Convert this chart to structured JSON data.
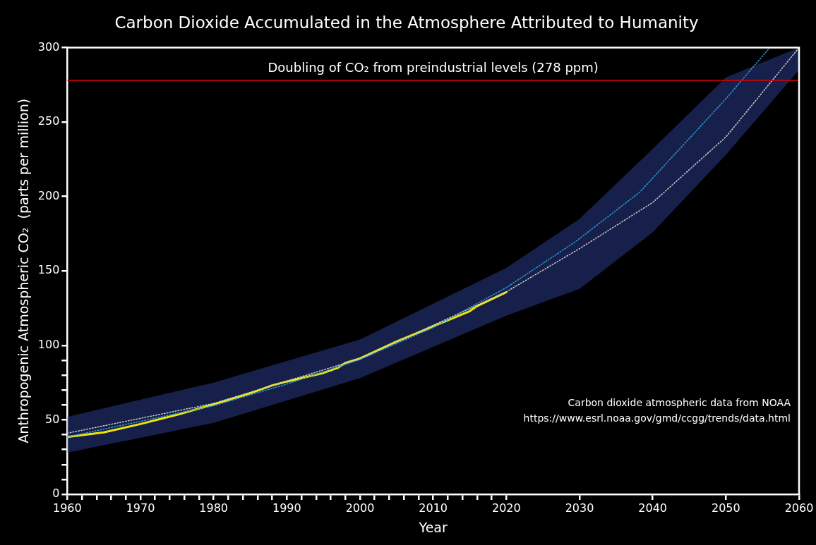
{
  "chart_data": {
    "type": "line",
    "title": "Carbon Dioxide Accumulated in the Atmosphere Attributed to Humanity",
    "xlabel": "Year",
    "ylabel": "Anthropogenic Atmospheric CO₂  (parts per million)",
    "series": [
      {
        "color": "#2a9fd6",
        "line_style": "dotted",
        "x": [
          1960,
          1980,
          1990,
          2000,
          2010,
          2020,
          2029.4,
          2038.2,
          2049.9,
          2056
        ],
        "values": [
          38.5,
          59.5,
          74,
          90.5,
          112,
          138.8,
          169.5,
          202.8,
          265.1,
          300
        ]
      },
      {
        "color": "#cccccc",
        "line_style": "dotted",
        "x": [
          1960,
          1980,
          2000,
          2020,
          2030,
          2040,
          2050,
          2060
        ],
        "values": [
          41,
          61,
          91,
          136,
          165,
          196,
          240,
          300
        ],
        "lower": [
          28,
          48,
          78,
          120,
          138,
          176,
          228,
          285
        ],
        "upper": [
          52,
          75,
          104,
          152,
          185,
          232,
          280,
          300
        ]
      },
      {
        "color": "#f2e600",
        "line_style": "solid",
        "x": [
          1960,
          1965,
          1970,
          1975,
          1980,
          1985,
          1988,
          1990,
          1995,
          1997,
          1998,
          2000,
          2005,
          2010,
          2015,
          2016,
          2020
        ],
        "values": [
          38.5,
          41.6,
          47.2,
          53.4,
          60.4,
          67.8,
          73.1,
          75.7,
          81.5,
          85,
          88.2,
          91.2,
          102.6,
          112.8,
          123,
          126.4,
          135.8
        ]
      }
    ],
    "xlim": [
      1960,
      2060
    ],
    "xticks": [
      1960,
      {
        "value": 1962,
        "label": null
      },
      {
        "value": 1964,
        "label": null
      },
      {
        "value": 1966,
        "label": null
      },
      {
        "value": 1968,
        "label": null
      },
      1970,
      {
        "value": 1972,
        "label": null
      },
      {
        "value": 1974,
        "label": null
      },
      {
        "value": 1976,
        "label": null
      },
      {
        "value": 1978,
        "label": null
      },
      1980,
      {
        "value": 1982,
        "label": null
      },
      {
        "value": 1984,
        "label": null
      },
      {
        "value": 1986,
        "label": null
      },
      {
        "value": 1988,
        "label": null
      },
      1990,
      {
        "value": 1992,
        "label": null
      },
      {
        "value": 1994,
        "label": null
      },
      {
        "value": 1996,
        "label": null
      },
      {
        "value": 1998,
        "label": null
      },
      2000,
      {
        "value": 2002,
        "label": null
      },
      {
        "value": 2004,
        "label": null
      },
      {
        "value": 2006,
        "label": null
      },
      {
        "value": 2008,
        "label": null
      },
      2010,
      {
        "value": 2012,
        "label": null
      },
      {
        "value": 2014,
        "label": null
      },
      {
        "value": 2016,
        "label": null
      },
      {
        "value": 2018,
        "label": null
      },
      2020,
      2030,
      2040,
      2050,
      2060
    ],
    "ylim": [
      0,
      300
    ],
    "yticks": [
      0,
      {
        "value": 10,
        "label": null
      },
      {
        "value": 20,
        "label": null
      },
      {
        "value": 30,
        "label": null
      },
      {
        "value": 40,
        "label": null
      },
      50,
      {
        "value": 60,
        "label": null
      },
      {
        "value": 70,
        "label": null
      },
      {
        "value": 80,
        "label": null
      },
      {
        "value": 90,
        "label": null
      },
      100,
      150,
      200,
      250,
      300
    ],
    "ref_lines": [
      {
        "axis": "y",
        "value": 278,
        "label": "Doubling of CO₂ from preindustrial levels (278 ppm)",
        "color": "#e00000"
      }
    ],
    "annotations": [
      "Carbon dioxide atmospheric data from NOAA",
      "https://www.esrl.noaa.gov/gmd/ccgg/trends/data.html"
    ],
    "marker": "none",
    "grid": false,
    "legend": false
  }
}
